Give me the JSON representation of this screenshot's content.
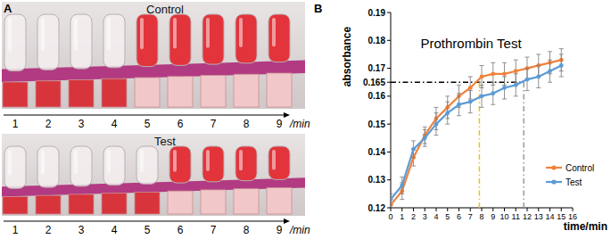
{
  "panel_a": {
    "letter": "A",
    "unit_label": "/min",
    "minutes": [
      1,
      2,
      3,
      4,
      5,
      6,
      7,
      8,
      9
    ],
    "rows": [
      {
        "title": "Control",
        "flowed": [
          false,
          false,
          false,
          false,
          true,
          true,
          true,
          true,
          true
        ]
      },
      {
        "title": "Test",
        "flowed": [
          false,
          false,
          false,
          false,
          false,
          true,
          true,
          true,
          true
        ]
      }
    ]
  },
  "chart_data": {
    "type": "line",
    "panel": "B",
    "title": "Prothrombin Test",
    "x_label": "time/min",
    "y_label": "absorbance",
    "x": [
      0,
      1,
      2,
      3,
      4,
      5,
      6,
      7,
      8,
      9,
      10,
      11,
      12,
      13,
      14,
      15
    ],
    "xlim": [
      0,
      16
    ],
    "xticks": [
      0,
      1,
      2,
      3,
      4,
      5,
      6,
      7,
      8,
      9,
      10,
      11,
      12,
      13,
      14,
      15,
      16
    ],
    "ylim": [
      0.12,
      0.19
    ],
    "yticks": [
      0.12,
      0.13,
      0.14,
      0.15,
      0.16,
      0.165,
      0.17,
      0.18,
      0.19
    ],
    "legend": "lower right",
    "marker": "circle",
    "series": [
      {
        "name": "Control",
        "color": "#f0823c",
        "values": [
          0.121,
          0.126,
          0.138,
          0.146,
          0.152,
          0.156,
          0.16,
          0.163,
          0.167,
          0.168,
          0.168,
          0.169,
          0.17,
          0.171,
          0.172,
          0.173
        ],
        "errors": [
          0.002,
          0.003,
          0.003,
          0.003,
          0.004,
          0.004,
          0.004,
          0.004,
          0.004,
          0.004,
          0.004,
          0.004,
          0.004,
          0.004,
          0.004,
          0.004
        ]
      },
      {
        "name": "Test",
        "color": "#5b9bd5",
        "values": [
          0.123,
          0.128,
          0.141,
          0.145,
          0.15,
          0.154,
          0.157,
          0.158,
          0.16,
          0.161,
          0.163,
          0.164,
          0.166,
          0.167,
          0.169,
          0.171
        ],
        "errors": [
          0.002,
          0.003,
          0.003,
          0.003,
          0.004,
          0.004,
          0.004,
          0.004,
          0.004,
          0.004,
          0.004,
          0.004,
          0.004,
          0.004,
          0.004,
          0.004
        ]
      }
    ],
    "reference_lines": [
      {
        "orientation": "h",
        "value": 0.165,
        "to": 11.7,
        "color": "#000000",
        "line_style": "dashdot"
      },
      {
        "orientation": "v",
        "value": 7.8,
        "to": 0.165,
        "color": "#f2c300",
        "line_style": "dashdot"
      },
      {
        "orientation": "v",
        "value": 11.7,
        "to": 0.165,
        "color": "#9a9a9a",
        "line_style": "dashdot"
      }
    ]
  }
}
